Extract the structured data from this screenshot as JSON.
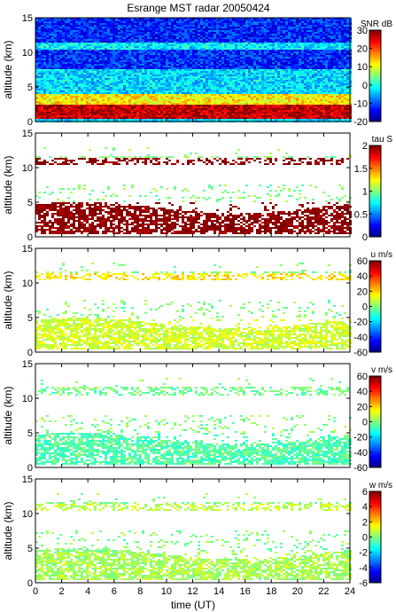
{
  "title": "Esrange MST radar 20050424",
  "xlabel": "time (UT)",
  "x_ticks": [
    "0",
    "2",
    "4",
    "6",
    "8",
    "10",
    "12",
    "14",
    "16",
    "18",
    "20",
    "22",
    "24"
  ],
  "chart_data": [
    {
      "type": "heatmap",
      "title": "Esrange MST radar 20050424",
      "xlabel": "",
      "ylabel": "altitude (km)",
      "xlim": [
        0,
        24
      ],
      "ylim": [
        0,
        15
      ],
      "y_ticks": [
        "0",
        "5",
        "10",
        "15"
      ],
      "colorbar": {
        "label": "SNR dB",
        "range": [
          -20,
          30
        ],
        "ticks": [
          "30",
          "20",
          "10",
          "0",
          "-10",
          "-20"
        ]
      },
      "features": [
        {
          "altitude_km": [
            0.3,
            2.5
          ],
          "value": 27,
          "desc": "strong echo near ground"
        },
        {
          "altitude_km": [
            2.5,
            4.0
          ],
          "value": 12
        },
        {
          "altitude_km": [
            4.0,
            7.5
          ],
          "value": -3
        },
        {
          "altitude_km": [
            7.5,
            15
          ],
          "value": -12
        },
        {
          "altitude_km": [
            10.3,
            11.3
          ],
          "value": -2
        }
      ]
    },
    {
      "type": "heatmap",
      "title": "",
      "xlabel": "",
      "ylabel": "altitude (km)",
      "xlim": [
        0,
        24
      ],
      "ylim": [
        0,
        15
      ],
      "y_ticks": [
        "0",
        "5",
        "10",
        "15"
      ],
      "colorbar": {
        "label": "tau S",
        "range": [
          0,
          2
        ],
        "ticks": [
          "2",
          "1.5",
          "1",
          "0.5",
          "0"
        ]
      },
      "features": [
        {
          "altitude_km": [
            0.5,
            5.0
          ],
          "value": 2.0
        },
        {
          "altitude_km": [
            10.5,
            11.5
          ],
          "value": 2.0
        }
      ]
    },
    {
      "type": "heatmap",
      "title": "",
      "xlabel": "",
      "ylabel": "altitude (km)",
      "xlim": [
        0,
        24
      ],
      "ylim": [
        0,
        15
      ],
      "y_ticks": [
        "0",
        "5",
        "10",
        "15"
      ],
      "colorbar": {
        "label": "u m/s",
        "range": [
          -60,
          60
        ],
        "ticks": [
          "60",
          "40",
          "20",
          "0",
          "-20",
          "-40",
          "-60"
        ]
      },
      "features": [
        {
          "altitude_km": [
            0.5,
            5.0
          ],
          "value": 10
        },
        {
          "altitude_km": [
            10.5,
            11.5
          ],
          "value": 18
        }
      ]
    },
    {
      "type": "heatmap",
      "title": "",
      "xlabel": "",
      "ylabel": "altitude (km)",
      "xlim": [
        0,
        24
      ],
      "ylim": [
        0,
        15
      ],
      "y_ticks": [
        "0",
        "5",
        "10",
        "15"
      ],
      "colorbar": {
        "label": "v m/s",
        "range": [
          -60,
          60
        ],
        "ticks": [
          "60",
          "40",
          "20",
          "0",
          "-20",
          "-40",
          "-60"
        ]
      },
      "features": [
        {
          "altitude_km": [
            0.5,
            5.0
          ],
          "value": -5
        },
        {
          "altitude_km": [
            10.5,
            11.5
          ],
          "value": -2
        }
      ]
    },
    {
      "type": "heatmap",
      "title": "",
      "xlabel": "time (UT)",
      "ylabel": "altitude (km)",
      "xlim": [
        0,
        24
      ],
      "ylim": [
        0,
        15
      ],
      "y_ticks": [
        "0",
        "5",
        "10",
        "15"
      ],
      "colorbar": {
        "label": "w m/s",
        "range": [
          -6,
          6
        ],
        "ticks": [
          "6",
          "4",
          "2",
          "0",
          "-2",
          "-4",
          "-6"
        ]
      },
      "features": [
        {
          "altitude_km": [
            0.3,
            4.5
          ],
          "value": 0.5
        },
        {
          "altitude_km": [
            10.5,
            11.5
          ],
          "value": 0.8
        }
      ]
    }
  ]
}
